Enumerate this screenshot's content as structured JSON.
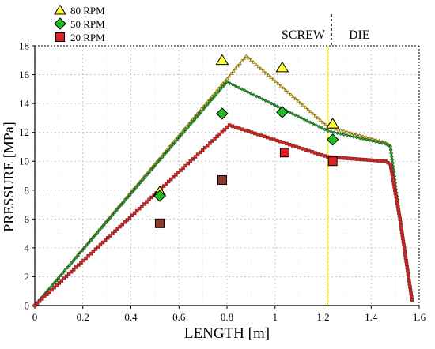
{
  "chart_data": {
    "type": "line",
    "title": "",
    "xlabel": "LENGTH [m]",
    "ylabel": "PRESSURE [MPa]",
    "xlim": [
      0,
      1.6
    ],
    "ylim": [
      0,
      18
    ],
    "x_ticks": [
      "0",
      "0.2",
      "0.4",
      "0.6",
      "0.8",
      "1",
      "1.2",
      "1.4",
      "1.6"
    ],
    "x_tick_values": [
      0,
      0.2,
      0.4,
      0.6,
      0.8,
      1.0,
      1.2,
      1.4,
      1.6
    ],
    "y_ticks": [
      "0",
      "2",
      "4",
      "6",
      "8",
      "10",
      "12",
      "14",
      "16",
      "18"
    ],
    "y_tick_values": [
      0,
      2,
      4,
      6,
      8,
      10,
      12,
      14,
      16,
      18
    ],
    "grid": true,
    "legend_position": "top-left",
    "regions": [
      {
        "label": "SCREW"
      },
      {
        "label": "DIE"
      }
    ],
    "boundary_x": 1.22,
    "divider_x": 1.235,
    "series": [
      {
        "name": "80 RPM",
        "marker": "triangle",
        "fill": "#ffff33",
        "curve_color": "#8a6a1a",
        "measured": [
          [
            0.52,
            7.9
          ],
          [
            0.78,
            17.0
          ],
          [
            1.03,
            16.5
          ],
          [
            1.24,
            12.6
          ]
        ],
        "simulated": [
          [
            0,
            0
          ],
          [
            0.88,
            17.3
          ],
          [
            1.22,
            12.4
          ],
          [
            1.46,
            11.3
          ],
          [
            1.48,
            11.1
          ],
          [
            1.52,
            6.0
          ],
          [
            1.57,
            0.4
          ]
        ]
      },
      {
        "name": "50 RPM",
        "marker": "diamond",
        "fill": "#22bb22",
        "curve_color": "#1e5a2a",
        "measured": [
          [
            0.52,
            7.6
          ],
          [
            0.78,
            13.3
          ],
          [
            1.03,
            13.4
          ],
          [
            1.24,
            11.5
          ]
        ],
        "simulated": [
          [
            0,
            0
          ],
          [
            0.8,
            15.5
          ],
          [
            1.22,
            12.1
          ],
          [
            1.46,
            11.2
          ],
          [
            1.48,
            11.0
          ],
          [
            1.52,
            6.0
          ],
          [
            1.57,
            0.4
          ]
        ]
      },
      {
        "name": "20 RPM",
        "marker": "square",
        "fill": "#dd2222",
        "curve_color": "#7a2a2a",
        "measured": [
          [
            0.52,
            5.7
          ],
          [
            0.78,
            8.7
          ],
          [
            1.04,
            10.6
          ],
          [
            1.24,
            10.0
          ]
        ],
        "simulated": [
          [
            0,
            0
          ],
          [
            0.81,
            12.5
          ],
          [
            1.22,
            10.3
          ],
          [
            1.46,
            10.0
          ],
          [
            1.48,
            9.8
          ],
          [
            1.52,
            6.0
          ],
          [
            1.57,
            0.4
          ]
        ]
      }
    ]
  }
}
